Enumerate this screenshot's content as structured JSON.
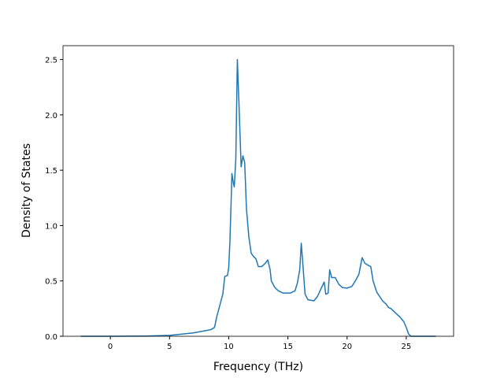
{
  "chart_data": {
    "type": "line",
    "xlabel": "Frequency (THz)",
    "ylabel": "Density of States",
    "xlim": [
      -4,
      29
    ],
    "ylim": [
      0,
      2.625
    ],
    "xticks": [
      0,
      5,
      10,
      15,
      20,
      25
    ],
    "yticks": [
      {
        "value": 0,
        "label": "0.0"
      },
      {
        "value": 0.5,
        "label": "0.5"
      },
      {
        "value": 1,
        "label": "1.0"
      },
      {
        "value": 1.5,
        "label": "1.5"
      },
      {
        "value": 2,
        "label": "2.0"
      },
      {
        "value": 2.5,
        "label": "2.5"
      }
    ],
    "grid": false,
    "series": [
      {
        "color": "#1f77b4",
        "x": [
          -2.5,
          0,
          3,
          5,
          7,
          8,
          8.5,
          8.8,
          9.0,
          9.3,
          9.5,
          9.67,
          9.9,
          10.0,
          10.1,
          10.2,
          10.27,
          10.4,
          10.47,
          10.6,
          10.73,
          10.9,
          11.05,
          11.2,
          11.35,
          11.5,
          11.7,
          11.9,
          12.1,
          12.3,
          12.5,
          12.8,
          13.1,
          13.3,
          13.5,
          13.6,
          13.9,
          14.2,
          14.6,
          15.2,
          15.6,
          15.8,
          16.0,
          16.13,
          16.3,
          16.45,
          16.7,
          17.2,
          17.5,
          17.8,
          18.07,
          18.2,
          18.4,
          18.53,
          18.7,
          19.0,
          19.3,
          19.6,
          20.0,
          20.4,
          20.7,
          21.0,
          21.27,
          21.5,
          21.8,
          22.0,
          22.2,
          22.5,
          23.0,
          23.3,
          23.5,
          23.7,
          24.0,
          24.5,
          24.8,
          25.0,
          25.2,
          25.4,
          27.5
        ],
        "values": [
          0,
          0,
          0.002,
          0.008,
          0.03,
          0.05,
          0.06,
          0.08,
          0.18,
          0.3,
          0.38,
          0.54,
          0.55,
          0.62,
          0.85,
          1.2,
          1.47,
          1.38,
          1.35,
          1.6,
          2.5,
          2.0,
          1.53,
          1.63,
          1.57,
          1.15,
          0.9,
          0.75,
          0.72,
          0.7,
          0.63,
          0.63,
          0.66,
          0.69,
          0.6,
          0.5,
          0.44,
          0.41,
          0.39,
          0.39,
          0.41,
          0.48,
          0.6,
          0.84,
          0.6,
          0.38,
          0.33,
          0.32,
          0.36,
          0.43,
          0.49,
          0.38,
          0.39,
          0.6,
          0.53,
          0.53,
          0.47,
          0.44,
          0.435,
          0.45,
          0.5,
          0.56,
          0.71,
          0.66,
          0.64,
          0.63,
          0.5,
          0.4,
          0.32,
          0.29,
          0.26,
          0.25,
          0.22,
          0.17,
          0.13,
          0.08,
          0.02,
          0,
          0
        ]
      }
    ]
  }
}
